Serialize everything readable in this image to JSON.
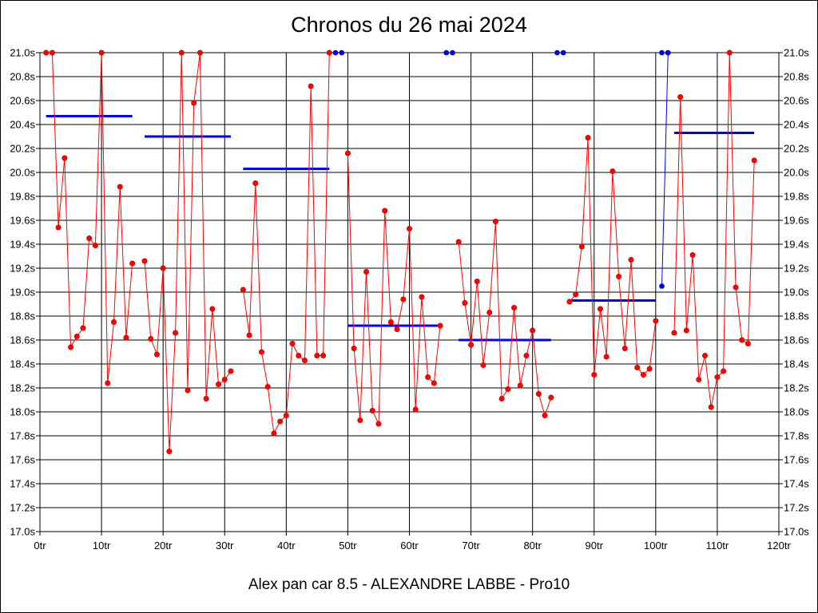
{
  "chart_data": {
    "type": "line",
    "title": "Chronos du 26 mai 2024",
    "subtitle": "Alex pan car 8.5 - ALEXANDRE LABBE - Pro10",
    "xlim": [
      0,
      120
    ],
    "ylim": [
      17.0,
      21.0
    ],
    "x_ticks": [
      0,
      10,
      20,
      30,
      40,
      50,
      60,
      70,
      80,
      90,
      100,
      110,
      120
    ],
    "x_tick_labels": [
      "0tr",
      "10tr",
      "20tr",
      "30tr",
      "40tr",
      "50tr",
      "60tr",
      "70tr",
      "80tr",
      "90tr",
      "100tr",
      "110tr",
      "120tr"
    ],
    "y_ticks": [
      17.0,
      17.2,
      17.4,
      17.6,
      17.8,
      18.0,
      18.2,
      18.4,
      18.6,
      18.8,
      19.0,
      19.2,
      19.4,
      19.6,
      19.8,
      20.0,
      20.2,
      20.4,
      20.6,
      20.8,
      21.0
    ],
    "y_tick_labels": [
      "17.0s",
      "17.2s",
      "17.4s",
      "17.6s",
      "17.8s",
      "18.0s",
      "18.2s",
      "18.4s",
      "18.6s",
      "18.8s",
      "19.0s",
      "19.2s",
      "19.4s",
      "19.6s",
      "19.8s",
      "20.0s",
      "20.2s",
      "20.4s",
      "20.6s",
      "20.8s",
      "21.0s"
    ],
    "grid": true,
    "colors": {
      "laps": "#ff0000",
      "laps_dark": "#cc0000",
      "special": "#0000ff",
      "average": "#0000ff"
    },
    "segments": [
      [
        [
          1,
          21.0
        ],
        [
          2,
          21.0
        ],
        [
          3,
          19.54
        ],
        [
          4,
          20.12
        ],
        [
          5,
          18.54
        ],
        [
          6,
          18.63
        ],
        [
          7,
          18.7
        ],
        [
          8,
          19.45
        ],
        [
          9,
          19.39
        ],
        [
          10,
          21.0
        ],
        [
          11,
          18.24
        ],
        [
          12,
          18.75
        ],
        [
          13,
          19.88
        ],
        [
          14,
          18.62
        ],
        [
          15,
          19.24
        ]
      ],
      [
        [
          17,
          19.26
        ],
        [
          18,
          18.61
        ],
        [
          19,
          18.48
        ],
        [
          20,
          19.2
        ],
        [
          21,
          17.67
        ],
        [
          22,
          18.66
        ],
        [
          23,
          21.0
        ],
        [
          24,
          18.18
        ],
        [
          25,
          20.58
        ],
        [
          26,
          21.0
        ],
        [
          27,
          18.11
        ],
        [
          28,
          18.86
        ],
        [
          29,
          18.23
        ],
        [
          30,
          18.27
        ],
        [
          31,
          18.34
        ]
      ],
      [
        [
          33,
          19.02
        ],
        [
          34,
          18.64
        ],
        [
          35,
          19.91
        ],
        [
          36,
          18.5
        ],
        [
          37,
          18.21
        ],
        [
          38,
          17.82
        ],
        [
          39,
          17.92
        ],
        [
          40,
          17.97
        ],
        [
          41,
          18.57
        ],
        [
          42,
          18.47
        ],
        [
          43,
          18.43
        ],
        [
          44,
          20.72
        ],
        [
          45,
          18.47
        ],
        [
          46,
          18.47
        ],
        [
          47,
          21.0
        ]
      ],
      [
        [
          50,
          20.16
        ],
        [
          51,
          18.53
        ],
        [
          52,
          17.93
        ],
        [
          53,
          19.17
        ],
        [
          54,
          18.01
        ],
        [
          55,
          17.9
        ],
        [
          56,
          19.68
        ],
        [
          57,
          18.75
        ],
        [
          58,
          18.69
        ],
        [
          59,
          18.94
        ],
        [
          60,
          19.53
        ],
        [
          61,
          18.02
        ],
        [
          62,
          18.96
        ],
        [
          63,
          18.29
        ],
        [
          64,
          18.24
        ],
        [
          65,
          18.72
        ]
      ],
      [
        [
          68,
          19.42
        ],
        [
          69,
          18.91
        ],
        [
          70,
          18.56
        ],
        [
          71,
          19.09
        ],
        [
          72,
          18.39
        ],
        [
          73,
          18.83
        ],
        [
          74,
          19.59
        ],
        [
          75,
          18.11
        ],
        [
          76,
          18.19
        ],
        [
          77,
          18.87
        ],
        [
          78,
          18.22
        ],
        [
          79,
          18.47
        ],
        [
          80,
          18.68
        ],
        [
          81,
          18.15
        ],
        [
          82,
          17.97
        ],
        [
          83,
          18.12
        ]
      ],
      [
        [
          86,
          18.92
        ],
        [
          87,
          18.98
        ],
        [
          88,
          19.38
        ],
        [
          89,
          20.29
        ],
        [
          90,
          18.31
        ],
        [
          91,
          18.86
        ],
        [
          92,
          18.46
        ],
        [
          93,
          20.01
        ],
        [
          94,
          19.13
        ],
        [
          95,
          18.53
        ],
        [
          96,
          19.27
        ],
        [
          97,
          18.37
        ],
        [
          98,
          18.31
        ],
        [
          99,
          18.36
        ],
        [
          100,
          18.76
        ]
      ],
      [
        [
          103,
          18.66
        ],
        [
          104,
          20.63
        ],
        [
          105,
          18.68
        ],
        [
          106,
          19.31
        ],
        [
          107,
          18.27
        ],
        [
          108,
          18.47
        ],
        [
          109,
          18.04
        ],
        [
          110,
          18.29
        ],
        [
          111,
          18.34
        ],
        [
          112,
          21.0
        ],
        [
          113,
          19.04
        ],
        [
          114,
          18.6
        ],
        [
          115,
          18.57
        ],
        [
          116,
          20.1
        ]
      ]
    ],
    "special_points": [
      [
        48,
        21.0
      ],
      [
        49,
        21.0
      ],
      [
        66,
        21.0
      ],
      [
        67,
        21.0
      ],
      [
        84,
        21.0
      ],
      [
        85,
        21.0
      ],
      [
        101,
        21.0
      ],
      [
        102,
        21.0
      ]
    ],
    "special_lines": [
      [
        [
          101,
          19.05
        ],
        [
          101.5,
          20.0
        ],
        [
          102,
          21.0
        ]
      ]
    ],
    "special_markers": [
      [
        101,
        19.05
      ],
      [
        102,
        21.0
      ]
    ],
    "averages": [
      {
        "x0": 1,
        "x1": 15,
        "value": 20.47
      },
      {
        "x0": 17,
        "x1": 31,
        "value": 20.3
      },
      {
        "x0": 33,
        "x1": 47,
        "value": 20.03
      },
      {
        "x0": 50,
        "x1": 65,
        "value": 18.72
      },
      {
        "x0": 68,
        "x1": 83,
        "value": 18.6
      },
      {
        "x0": 86,
        "x1": 100,
        "value": 18.93
      },
      {
        "x0": 103,
        "x1": 116,
        "value": 20.33
      }
    ]
  }
}
